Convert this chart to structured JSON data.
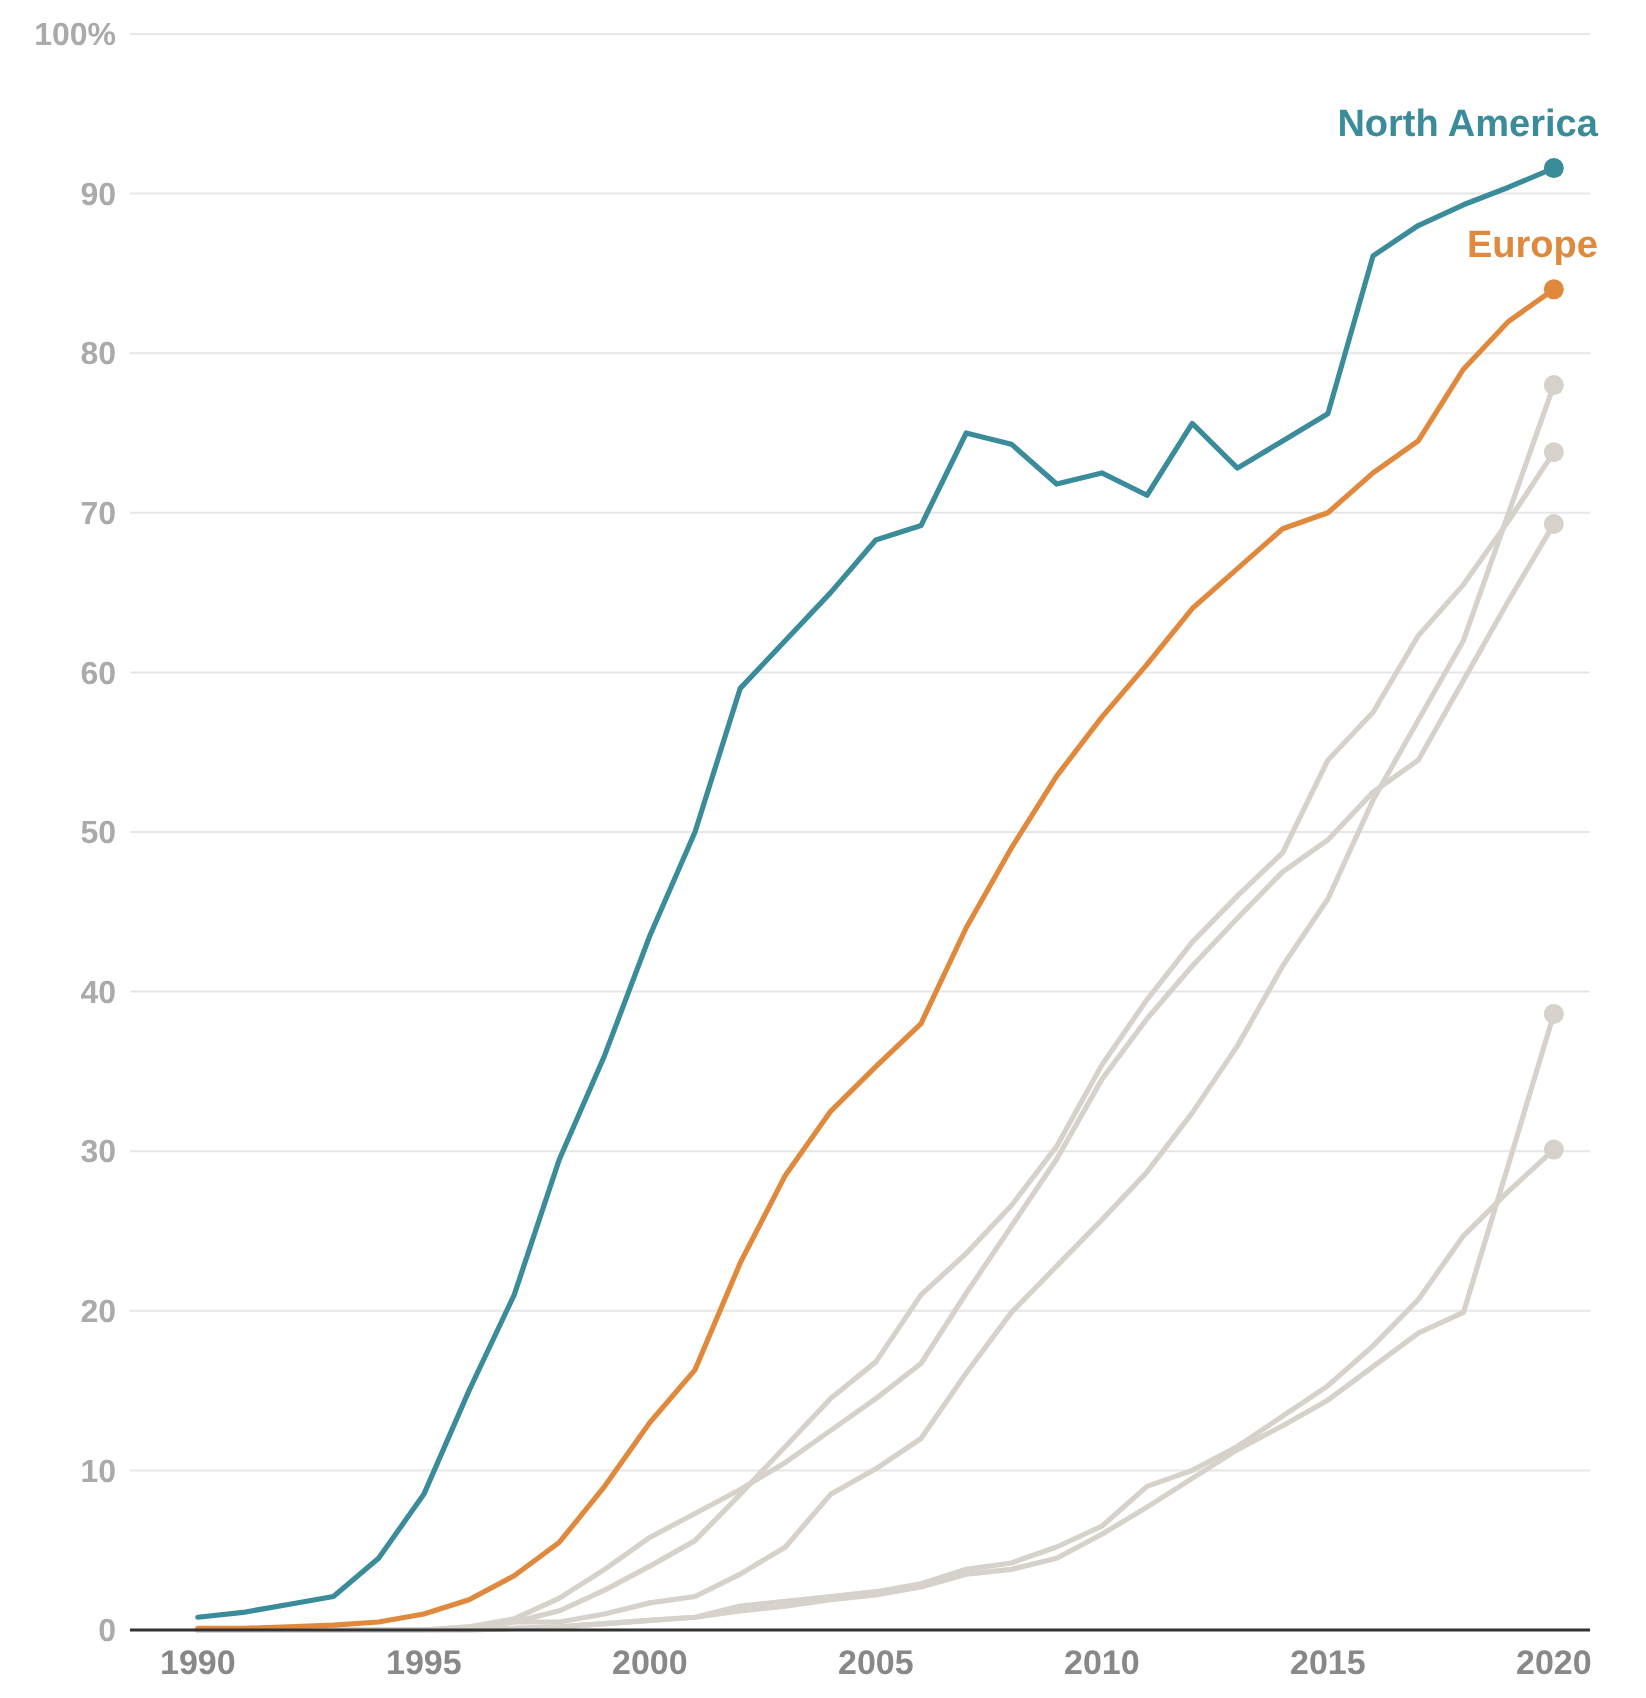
{
  "chart_data": {
    "type": "line",
    "x": [
      1990,
      1991,
      1992,
      1993,
      1994,
      1995,
      1996,
      1997,
      1998,
      1999,
      2000,
      2001,
      2002,
      2003,
      2004,
      2005,
      2006,
      2007,
      2008,
      2009,
      2010,
      2011,
      2012,
      2013,
      2014,
      2015,
      2016,
      2017,
      2018,
      2019,
      2020
    ],
    "series": [
      {
        "color": "#d6d2cb",
        "values": [
          0,
          0,
          0,
          0,
          0,
          0,
          0.1,
          0.5,
          0.5,
          1,
          1.7,
          2.1,
          3.5,
          5.2,
          8.5,
          10.1,
          12,
          16.1,
          19.9,
          22.8,
          25.7,
          28.7,
          32.4,
          36.6,
          41.6,
          45.8,
          52,
          57,
          62,
          70,
          78
        ]
      },
      {
        "color": "#d6d2cb",
        "values": [
          0,
          0,
          0,
          0,
          0,
          0,
          0.2,
          0.5,
          1.2,
          2.5,
          4,
          5.6,
          8.5,
          11.5,
          14.5,
          16.8,
          21,
          23.6,
          26.6,
          30.3,
          35.4,
          39.5,
          43.1,
          46,
          48.7,
          54.5,
          57.5,
          62.3,
          65.5,
          69.5,
          73.8
        ]
      },
      {
        "color": "#d6d2cb",
        "values": [
          0,
          0,
          0,
          0,
          0,
          0,
          0.2,
          0.7,
          2,
          3.8,
          5.8,
          7.3,
          8.8,
          10.5,
          12.5,
          14.5,
          16.7,
          21.1,
          25.3,
          29.5,
          34.5,
          38.3,
          41.6,
          44.6,
          47.5,
          49.5,
          52.5,
          54.5,
          59.5,
          64.5,
          69.3
        ]
      },
      {
        "color": "#d6d2cb",
        "values": [
          0,
          0,
          0,
          0,
          0,
          0,
          0,
          0.1,
          0.2,
          0.4,
          0.6,
          0.8,
          1.2,
          1.5,
          1.9,
          2.2,
          2.7,
          3.5,
          3.8,
          4.5,
          6,
          7.7,
          9.5,
          11.3,
          12.8,
          14.4,
          16.5,
          18.6,
          19.9,
          29.2,
          38.6
        ]
      },
      {
        "color": "#d6d2cb",
        "values": [
          0,
          0,
          0,
          0,
          0,
          0,
          0,
          0.1,
          0.2,
          0.4,
          0.6,
          0.8,
          1.5,
          1.8,
          2.1,
          2.4,
          2.9,
          3.8,
          4.2,
          5.2,
          6.5,
          9,
          10,
          11.5,
          13.4,
          15.3,
          17.8,
          20.7,
          24.7,
          27.5,
          30.1
        ]
      },
      {
        "name": "Europe",
        "color": "#e0893c",
        "values": [
          0.1,
          0.1,
          0.2,
          0.3,
          0.5,
          1,
          1.9,
          3.4,
          5.5,
          9,
          13,
          16.3,
          23,
          28.5,
          32.5,
          35.3,
          38,
          44,
          49,
          53.5,
          57.2,
          60.5,
          64,
          66.5,
          69,
          70,
          72.5,
          74.5,
          79,
          82,
          84
        ]
      },
      {
        "name": "North America",
        "color": "#3a8c9a",
        "values": [
          0.8,
          1.1,
          1.6,
          2.1,
          4.5,
          8.5,
          15,
          21,
          29.5,
          36,
          43.5,
          50,
          59,
          62,
          65,
          68.3,
          69.2,
          75,
          74.3,
          71.8,
          72.5,
          71.1,
          75.6,
          72.8,
          74.5,
          76.2,
          86.1,
          88,
          89.3,
          90.4,
          91.6
        ]
      }
    ],
    "xlim": [
      1988.5,
      2020.8
    ],
    "xticks": [
      1990,
      1995,
      2000,
      2005,
      2010,
      2015,
      2020
    ],
    "ylim": [
      0,
      100
    ],
    "yticks": [
      0,
      10,
      20,
      30,
      40,
      50,
      60,
      70,
      80,
      90,
      {
        "value": 100,
        "label": "100%"
      }
    ],
    "grid": "y",
    "line_style": "solid"
  }
}
